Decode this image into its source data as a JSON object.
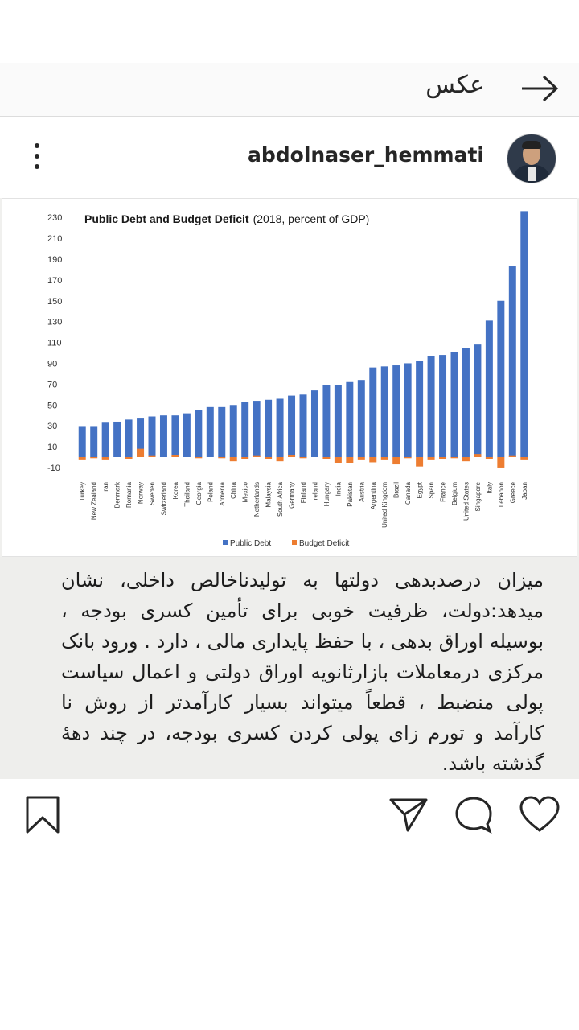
{
  "header": {
    "title": "عکس",
    "back_icon": "arrow-right-icon"
  },
  "post": {
    "username": "abdolnaser_hemmati",
    "menu_icon": "more-vertical-icon",
    "caption": "میزان درصدبدهی دولتها به تولیدناخالص داخلی، نشان میدهد:دولت، ظرفیت خوبی برای تأمین کسری بودجه ، بوسیله اوراق بدهی ، با حفظ پایداری مالی ، دارد . ورود بانک مرکزی درمعاملات بازارثانویه اوراق دولتی و اعمال سیاست پولی منضبط ، قطعاً میتواند بسیار کارآمدتر از روش نا کارآمد و تورم زای پولی کردن کسری بودجه، در چند دههٔ گذشته باشد."
  },
  "actions": {
    "like_icon": "heart-icon",
    "comment_icon": "comment-icon",
    "share_icon": "send-icon",
    "save_icon": "bookmark-icon"
  },
  "chart_data": {
    "type": "bar",
    "title": "Public Debt and Budget Deficit",
    "subtitle": "(2018, percent of GDP)",
    "categories": [
      "Turkey",
      "New Zealand",
      "Iran",
      "Denmark",
      "Romania",
      "Norway",
      "Sweden",
      "Switzerland",
      "Korea",
      "Thailand",
      "Georgia",
      "Poland",
      "Armenia",
      "China",
      "Mexico",
      "Netherlands",
      "Malaysia",
      "South Africa",
      "Germany",
      "Finland",
      "Ireland",
      "Hungary",
      "India",
      "Pakistan",
      "Austria",
      "Argentina",
      "United Kingdom",
      "Brazil",
      "Canada",
      "Egypt",
      "Spain",
      "France",
      "Belgium",
      "United States",
      "Singapore",
      "Italy",
      "Lebanon",
      "Greece",
      "Japan"
    ],
    "series": [
      {
        "name": "Public Debt",
        "color": "#4472c4",
        "values": [
          29,
          29,
          33,
          34,
          36,
          37,
          39,
          40,
          40,
          42,
          45,
          48,
          48,
          50,
          53,
          54,
          55,
          56,
          59,
          60,
          64,
          69,
          69,
          72,
          74,
          86,
          87,
          88,
          90,
          92,
          97,
          98,
          101,
          105,
          108,
          131,
          150,
          183,
          236
        ]
      },
      {
        "name": "Budget Deficit",
        "color": "#ed7d31",
        "values": [
          -3,
          -1,
          -3,
          0,
          -2,
          8,
          1,
          0,
          2,
          0,
          -1,
          0,
          -1,
          -4,
          -2,
          1,
          -2,
          -4,
          2,
          -1,
          0,
          -2,
          -6,
          -6,
          -3,
          -5,
          -3,
          -7,
          -1,
          -9,
          -3,
          -2,
          -1,
          -4,
          3,
          -2,
          -10,
          1,
          -3
        ]
      }
    ],
    "yticks": [
      230,
      210,
      190,
      170,
      150,
      130,
      110,
      90,
      70,
      50,
      30,
      10,
      -10
    ],
    "ylim": [
      -10,
      236
    ],
    "legend": "bottom-center",
    "grid": false
  }
}
